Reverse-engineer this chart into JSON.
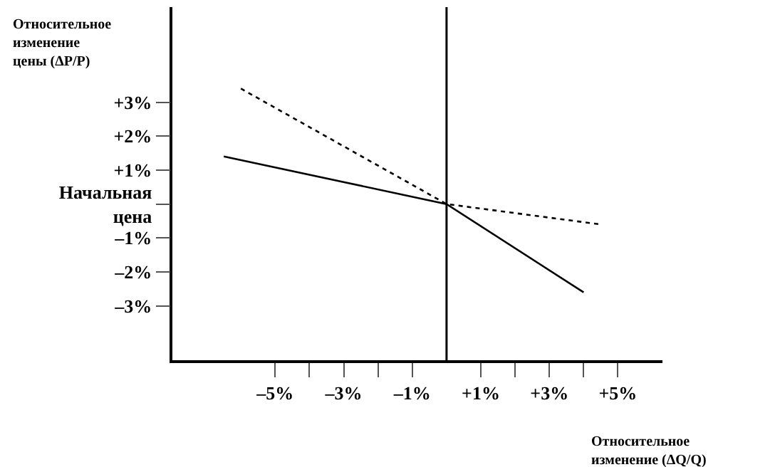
{
  "chart_data": {
    "type": "line",
    "xlabel": "Относительное изменение (ΔQ/Q)",
    "ylabel": "Относительное изменение цены (ΔP/P)",
    "series": [
      {
        "color": "#000000",
        "line_style": "solid",
        "x": [
          -6.5,
          0,
          4.0
        ],
        "values": [
          1.4,
          0,
          -2.6
        ]
      },
      {
        "color": "#000000",
        "line_style": "dotted",
        "x": [
          -6.0,
          0,
          4.5
        ],
        "values": [
          3.4,
          0,
          -0.6
        ]
      }
    ],
    "xlim": [
      -8,
      6.3
    ],
    "ylim": [
      -4.6,
      5.8
    ],
    "xticks": [
      {
        "value": -5,
        "label": "–5%"
      },
      {
        "value": -4,
        "label": null
      },
      {
        "value": -3,
        "label": "–3%"
      },
      {
        "value": -2,
        "label": null
      },
      {
        "value": -1,
        "label": "–1%"
      },
      {
        "value": 1,
        "label": "+1%"
      },
      {
        "value": 2,
        "label": null
      },
      {
        "value": 3,
        "label": "+3%"
      },
      {
        "value": 4,
        "label": null
      },
      {
        "value": 5,
        "label": "+5%"
      }
    ],
    "yticks": [
      {
        "value": 3,
        "label": "+3%"
      },
      {
        "value": 2,
        "label": "+2%"
      },
      {
        "value": 1,
        "label": "+1%"
      },
      {
        "value": 0,
        "label": "Начальная цена"
      },
      {
        "value": -1,
        "label": "–1%"
      },
      {
        "value": -2,
        "label": "–2%"
      },
      {
        "value": -3,
        "label": "–3%"
      }
    ],
    "ref_lines": [
      {
        "axis": "x",
        "value": 0,
        "color": "#000000"
      }
    ],
    "marker": "none"
  }
}
